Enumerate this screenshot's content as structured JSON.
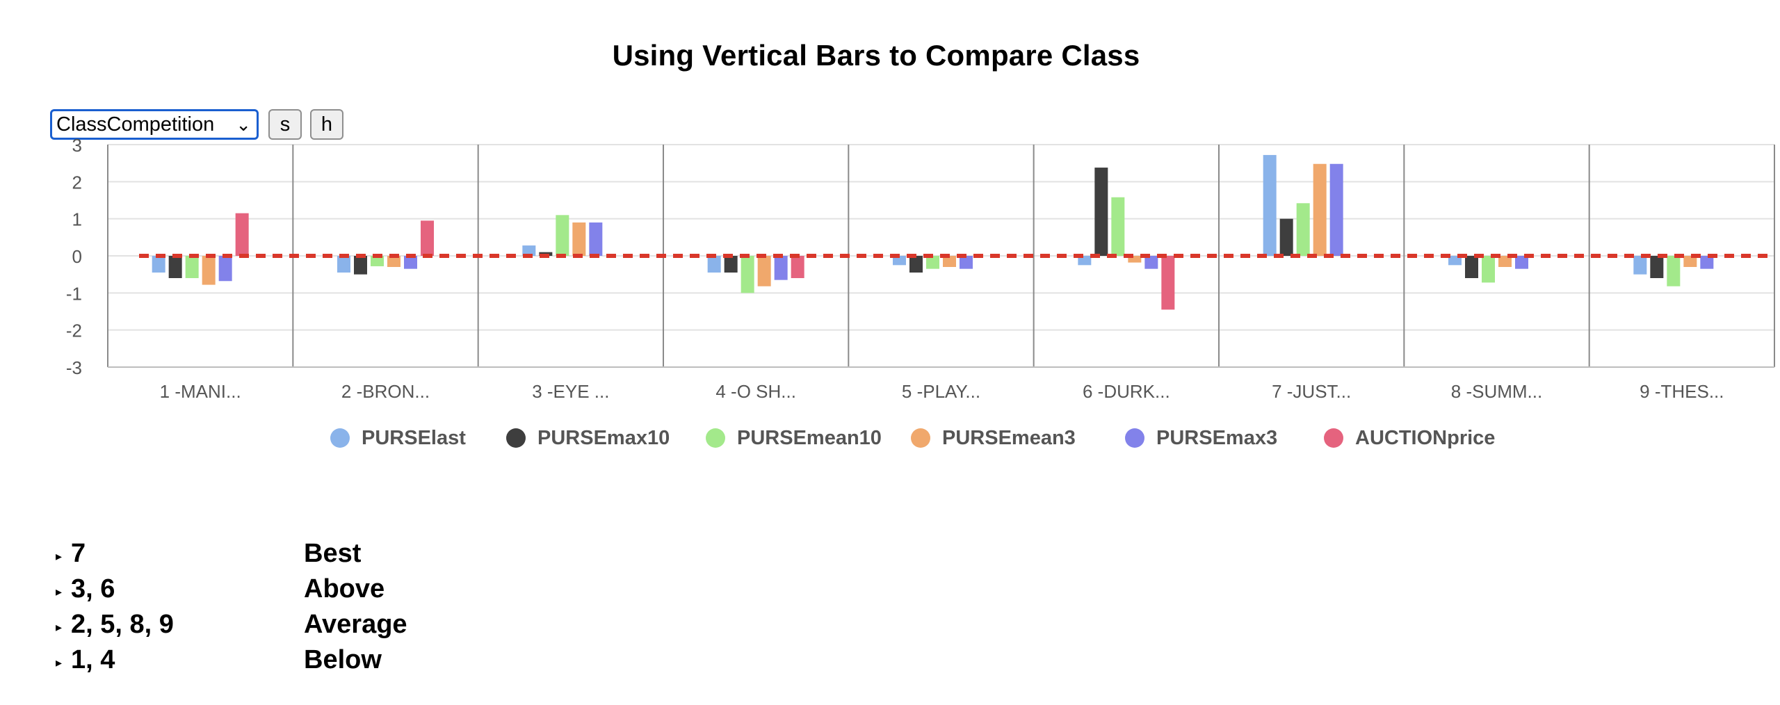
{
  "title": "Using Vertical Bars to Compare Class",
  "controls": {
    "select_value": "ClassCompetition",
    "button_s": "s",
    "button_h": "h"
  },
  "colors": {
    "reference_line": "#d9372a",
    "grid": "#e2e2e2",
    "separator": "#8a8a8a"
  },
  "chart_data": {
    "type": "bar",
    "title": "Using Vertical Bars to Compare Class",
    "xlabel": "",
    "ylabel": "",
    "ylim": [
      -3,
      3
    ],
    "yticks": [
      "3",
      "2",
      "1",
      "0",
      "-1",
      "-2",
      "-3"
    ],
    "grid": true,
    "legend_position": "bottom",
    "reference_line": 0,
    "categories": [
      "1 -MANI...",
      "2 -BRON...",
      "3 -EYE ...",
      "4 -O SH...",
      "5 -PLAY...",
      "6 -DURK...",
      "7 -JUST...",
      "8 -SUMM...",
      "9 -THES..."
    ],
    "series": [
      {
        "name": "PURSElast",
        "color": "#8ab3ea",
        "values": [
          -0.45,
          -0.45,
          0.28,
          -0.45,
          -0.25,
          -0.25,
          2.72,
          -0.25,
          -0.5
        ]
      },
      {
        "name": "PURSEmax10",
        "color": "#3e3e3e",
        "values": [
          -0.6,
          -0.5,
          0.1,
          -0.45,
          -0.45,
          2.38,
          1.0,
          -0.6,
          -0.6
        ]
      },
      {
        "name": "PURSEmean10",
        "color": "#a3e98b",
        "values": [
          -0.6,
          -0.28,
          1.1,
          -1.0,
          -0.35,
          1.58,
          1.42,
          -0.72,
          -0.82
        ]
      },
      {
        "name": "PURSEmean3",
        "color": "#f0a86c",
        "values": [
          -0.78,
          -0.3,
          0.9,
          -0.82,
          -0.3,
          -0.18,
          2.48,
          -0.3,
          -0.3
        ]
      },
      {
        "name": "PURSEmax3",
        "color": "#8282ea",
        "values": [
          -0.68,
          -0.35,
          0.9,
          -0.65,
          -0.35,
          -0.35,
          2.48,
          -0.35,
          -0.35
        ]
      },
      {
        "name": "AUCTIONprice",
        "color": "#e5637e",
        "values": [
          1.15,
          0.95,
          0.0,
          -0.6,
          0.0,
          -1.45,
          0.0,
          0.0,
          0.0
        ]
      }
    ]
  },
  "summary": [
    {
      "classes": "7",
      "rating": "Best"
    },
    {
      "classes": "3, 6",
      "rating": "Above"
    },
    {
      "classes": "2, 5, 8, 9",
      "rating": "Average"
    },
    {
      "classes": "1, 4",
      "rating": "Below"
    }
  ]
}
